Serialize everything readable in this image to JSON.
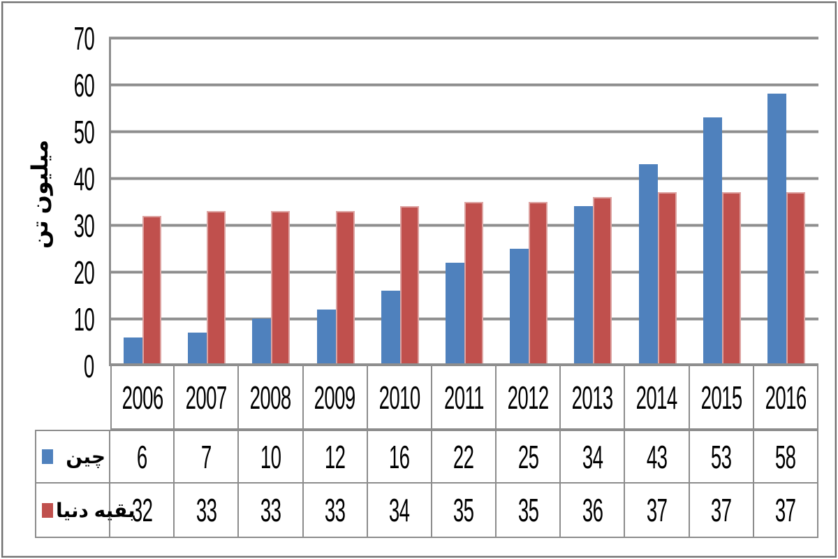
{
  "chart_data": {
    "type": "bar",
    "title": "",
    "xlabel": "",
    "ylabel": "میلیون تن",
    "categories": [
      "2006",
      "2007",
      "2008",
      "2009",
      "2010",
      "2011",
      "2012",
      "2013",
      "2014",
      "2015",
      "2016"
    ],
    "series": [
      {
        "name": "چین",
        "color": "#4F81BD",
        "values": [
          6,
          7,
          10,
          12,
          16,
          22,
          25,
          34,
          43,
          53,
          58
        ]
      },
      {
        "name": "بقیه دنیا",
        "color": "#C0504D",
        "values": [
          32,
          33,
          33,
          33,
          34,
          35,
          35,
          36,
          37,
          37,
          37
        ]
      }
    ],
    "yticks": [
      0,
      10,
      20,
      30,
      40,
      50,
      60,
      70
    ],
    "ylim": [
      0,
      70
    ],
    "grid": true,
    "legend_position": "data-table-left"
  },
  "colors": {
    "bar_blue": "#4F81BD",
    "bar_red": "#C0504D",
    "red_bar_outline": "#DDA3A1",
    "gridline": "#8E8E8E",
    "table_border": "#8C8C8C",
    "frame_border": "#6F6F6F",
    "text": "#000000",
    "background": "#FFFFFF"
  }
}
